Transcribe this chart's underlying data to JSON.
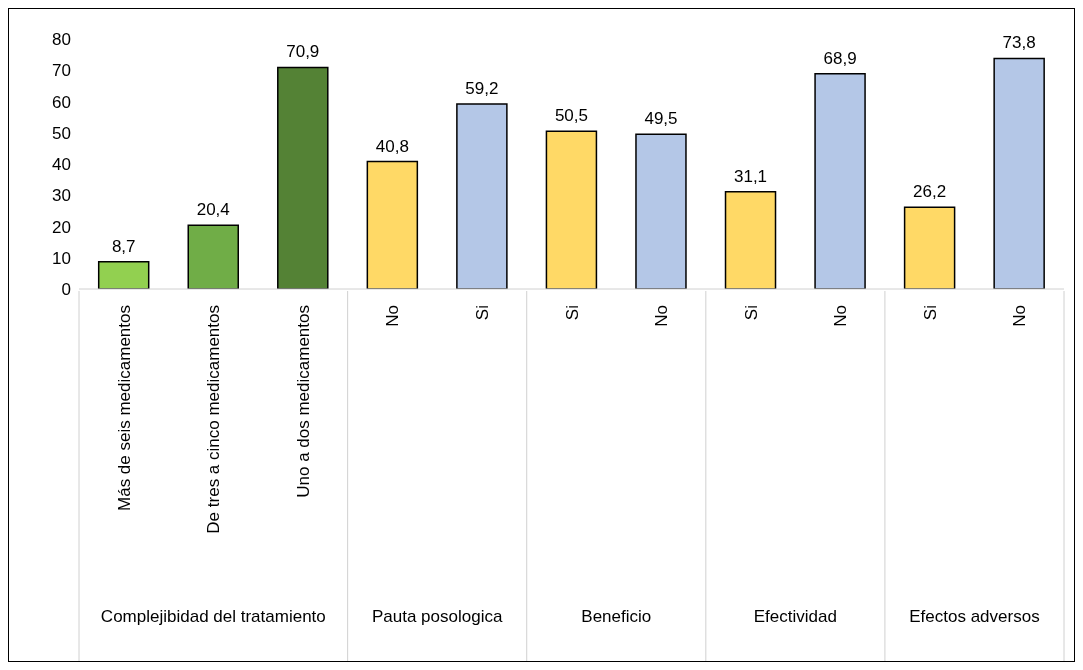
{
  "chart_data": {
    "type": "bar",
    "categories": [
      "Más de seis medicamentos",
      "De tres a cinco medicamentos",
      "Uno a dos medicamentos",
      "No",
      "Si",
      "Si",
      "No",
      "Si",
      "No",
      "Si",
      "No"
    ],
    "series": [
      {
        "values": [
          8.7,
          20.4,
          70.9,
          null,
          null,
          null,
          null,
          null,
          null,
          null,
          null
        ],
        "colors": [
          "#92d050",
          "#70ad47",
          "#548235",
          null,
          null,
          null,
          null,
          null,
          null,
          null,
          null
        ],
        "value_labels": [
          "8,7",
          "20,4",
          "70,9",
          null,
          null,
          null,
          null,
          null,
          null,
          null,
          null
        ]
      },
      {
        "values": [
          null,
          null,
          null,
          40.8,
          59.2,
          null,
          null,
          null,
          null,
          null,
          null
        ],
        "colors": [
          null,
          null,
          null,
          "#ffd966",
          "#b4c7e7",
          null,
          null,
          null,
          null,
          null,
          null
        ],
        "value_labels": [
          null,
          null,
          null,
          "40,8",
          "59,2",
          null,
          null,
          null,
          null,
          null,
          null
        ]
      },
      {
        "values": [
          null,
          null,
          null,
          null,
          null,
          50.5,
          49.5,
          null,
          null,
          null,
          null
        ],
        "colors": [
          null,
          null,
          null,
          null,
          null,
          "#ffd966",
          "#b4c7e7",
          null,
          null,
          null,
          null
        ],
        "value_labels": [
          null,
          null,
          null,
          null,
          null,
          "50,5",
          "49,5",
          null,
          null,
          null,
          null
        ]
      },
      {
        "values": [
          null,
          null,
          null,
          null,
          null,
          null,
          null,
          31.1,
          68.9,
          null,
          null
        ],
        "colors": [
          null,
          null,
          null,
          null,
          null,
          null,
          null,
          "#ffd966",
          "#b4c7e7",
          null,
          null
        ],
        "value_labels": [
          null,
          null,
          null,
          null,
          null,
          null,
          null,
          "31,1",
          "68,9",
          null,
          null
        ]
      },
      {
        "values": [
          null,
          null,
          null,
          null,
          null,
          null,
          null,
          null,
          null,
          26.2,
          73.8
        ],
        "colors": [
          null,
          null,
          null,
          null,
          null,
          null,
          null,
          null,
          null,
          "#ffd966",
          "#b4c7e7"
        ],
        "value_labels": [
          null,
          null,
          null,
          null,
          null,
          null,
          null,
          null,
          null,
          "26,2",
          "73,8"
        ]
      }
    ],
    "annotations": [
      "Complejibidad del tratamiento",
      "Pauta posologica",
      "Beneficio",
      "Efectividad",
      "Efectos adversos"
    ],
    "ylim": [
      0,
      80
    ],
    "yticks": [
      0,
      10,
      20,
      30,
      40,
      50,
      60,
      70,
      80
    ],
    "grid": false,
    "legend": false
  }
}
